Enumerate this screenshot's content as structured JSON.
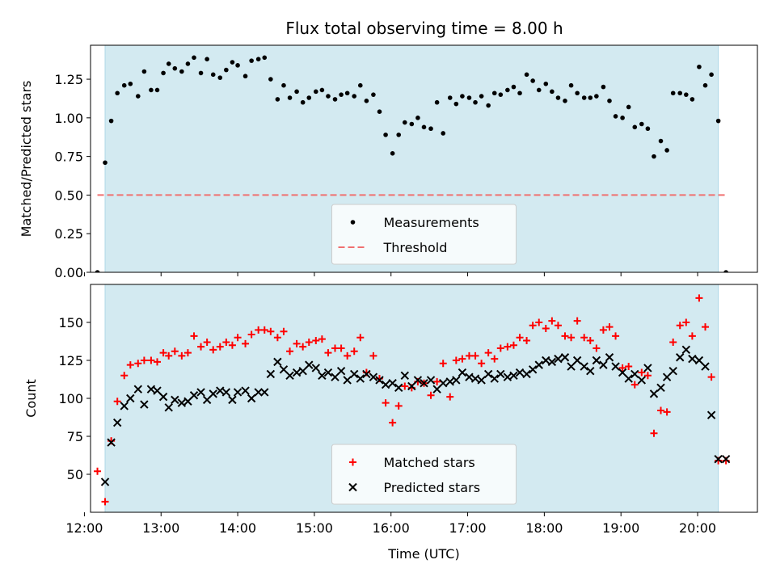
{
  "figure": {
    "title": "Flux total observing time = 8.00 h"
  },
  "colors": {
    "band": "#d3eaf1",
    "band_edge": "#add8e6",
    "threshold": "#f07070",
    "matched": "#ff0000",
    "predicted": "#000000",
    "measurements": "#000000"
  },
  "chart_data": [
    {
      "type": "scatter",
      "id": "ratio",
      "ylabel": "Matched/Predicted stars",
      "xlabel": "",
      "xlim": [
        12.08,
        20.78
      ],
      "ylim": [
        0,
        1.47
      ],
      "yticks": [
        "0.00",
        "0.25",
        "0.50",
        "0.75",
        "1.00",
        "1.25"
      ],
      "shaded_span": [
        12.27,
        20.27
      ],
      "legend": {
        "position": "lower-center",
        "entries": [
          "Measurements",
          "Threshold"
        ]
      },
      "threshold": {
        "name": "Threshold",
        "y": 0.5,
        "x": [
          12.17,
          20.37
        ]
      },
      "series": [
        {
          "name": "Measurements",
          "marker": "dot",
          "x": [
            12.17,
            12.27,
            12.35,
            12.43,
            12.52,
            12.6,
            12.7,
            12.78,
            12.87,
            12.95,
            13.03,
            13.1,
            13.18,
            13.27,
            13.35,
            13.43,
            13.52,
            13.6,
            13.68,
            13.77,
            13.85,
            13.93,
            14.0,
            14.1,
            14.18,
            14.27,
            14.35,
            14.43,
            14.52,
            14.6,
            14.68,
            14.77,
            14.85,
            14.93,
            15.02,
            15.1,
            15.18,
            15.27,
            15.35,
            15.43,
            15.52,
            15.6,
            15.68,
            15.77,
            15.85,
            15.93,
            16.02,
            16.1,
            16.18,
            16.27,
            16.35,
            16.43,
            16.52,
            16.6,
            16.68,
            16.77,
            16.85,
            16.93,
            17.02,
            17.1,
            17.18,
            17.27,
            17.35,
            17.43,
            17.52,
            17.6,
            17.68,
            17.77,
            17.85,
            17.93,
            18.02,
            18.1,
            18.18,
            18.27,
            18.35,
            18.43,
            18.52,
            18.6,
            18.68,
            18.77,
            18.85,
            18.93,
            19.02,
            19.1,
            19.18,
            19.27,
            19.35,
            19.43,
            19.52,
            19.6,
            19.68,
            19.77,
            19.85,
            19.93,
            20.02,
            20.1,
            20.18,
            20.27,
            20.37
          ],
          "y": [
            0.0,
            0.71,
            0.98,
            1.16,
            1.21,
            1.22,
            1.14,
            1.3,
            1.18,
            1.18,
            1.29,
            1.35,
            1.32,
            1.3,
            1.35,
            1.39,
            1.29,
            1.38,
            1.28,
            1.26,
            1.31,
            1.36,
            1.34,
            1.27,
            1.37,
            1.38,
            1.39,
            1.25,
            1.12,
            1.21,
            1.13,
            1.17,
            1.1,
            1.13,
            1.17,
            1.18,
            1.14,
            1.12,
            1.15,
            1.16,
            1.14,
            1.21,
            1.11,
            1.15,
            1.04,
            0.89,
            0.77,
            0.89,
            0.97,
            0.96,
            1.0,
            0.94,
            0.93,
            1.1,
            0.9,
            1.13,
            1.09,
            1.14,
            1.13,
            1.1,
            1.14,
            1.08,
            1.16,
            1.15,
            1.18,
            1.2,
            1.16,
            1.28,
            1.24,
            1.18,
            1.22,
            1.17,
            1.13,
            1.11,
            1.21,
            1.16,
            1.13,
            1.13,
            1.14,
            1.2,
            1.11,
            1.01,
            1.0,
            1.07,
            0.94,
            0.96,
            0.93,
            0.75,
            0.85,
            0.79,
            1.16,
            1.16,
            1.15,
            1.12,
            1.33,
            1.21,
            1.28,
            0.98,
            0.0
          ]
        }
      ]
    },
    {
      "type": "scatter",
      "id": "counts",
      "ylabel": "Count",
      "xlabel": "Time (UTC)",
      "xlim": [
        12.08,
        20.78
      ],
      "ylim": [
        25,
        175
      ],
      "yticks": [
        "50",
        "75",
        "100",
        "125",
        "150"
      ],
      "xticks": [
        "12:00",
        "13:00",
        "14:00",
        "15:00",
        "16:00",
        "17:00",
        "18:00",
        "19:00",
        "20:00"
      ],
      "shaded_span": [
        12.27,
        20.27
      ],
      "legend": {
        "position": "lower-center",
        "entries": [
          "Matched stars",
          "Predicted stars"
        ]
      },
      "series": [
        {
          "name": "Matched stars",
          "marker": "plus",
          "x": [
            12.17,
            12.27,
            12.35,
            12.43,
            12.52,
            12.6,
            12.7,
            12.78,
            12.87,
            12.95,
            13.03,
            13.1,
            13.18,
            13.27,
            13.35,
            13.43,
            13.52,
            13.6,
            13.68,
            13.77,
            13.85,
            13.93,
            14.0,
            14.1,
            14.18,
            14.27,
            14.35,
            14.43,
            14.52,
            14.6,
            14.68,
            14.77,
            14.85,
            14.93,
            15.02,
            15.1,
            15.18,
            15.27,
            15.35,
            15.43,
            15.52,
            15.6,
            15.68,
            15.77,
            15.85,
            15.93,
            16.02,
            16.1,
            16.18,
            16.27,
            16.35,
            16.43,
            16.52,
            16.6,
            16.68,
            16.77,
            16.85,
            16.93,
            17.02,
            17.1,
            17.18,
            17.27,
            17.35,
            17.43,
            17.52,
            17.6,
            17.68,
            17.77,
            17.85,
            17.93,
            18.02,
            18.1,
            18.18,
            18.27,
            18.35,
            18.43,
            18.52,
            18.6,
            18.68,
            18.77,
            18.85,
            18.93,
            19.02,
            19.1,
            19.18,
            19.27,
            19.35,
            19.43,
            19.52,
            19.6,
            19.68,
            19.77,
            19.85,
            19.93,
            20.02,
            20.1,
            20.18,
            20.27,
            20.37
          ],
          "y": [
            52,
            32,
            72,
            98,
            115,
            122,
            123,
            125,
            125,
            124,
            130,
            128,
            131,
            128,
            130,
            141,
            134,
            137,
            132,
            134,
            137,
            135,
            140,
            136,
            142,
            145,
            145,
            144,
            140,
            144,
            131,
            136,
            134,
            137,
            138,
            139,
            130,
            133,
            133,
            128,
            131,
            140,
            117,
            128,
            113,
            97,
            84,
            95,
            108,
            107,
            111,
            110,
            102,
            111,
            123,
            101,
            125,
            126,
            128,
            128,
            123,
            130,
            126,
            133,
            134,
            135,
            140,
            138,
            148,
            150,
            146,
            151,
            148,
            141,
            140,
            151,
            140,
            138,
            133,
            145,
            147,
            141,
            120,
            121,
            109,
            117,
            115,
            77,
            92,
            91,
            137,
            148,
            150,
            141,
            166,
            147,
            114,
            59,
            59
          ]
        },
        {
          "name": "Predicted stars",
          "marker": "x",
          "x": [
            12.27,
            12.35,
            12.43,
            12.52,
            12.6,
            12.7,
            12.78,
            12.87,
            12.95,
            13.03,
            13.1,
            13.18,
            13.27,
            13.35,
            13.43,
            13.52,
            13.6,
            13.68,
            13.77,
            13.85,
            13.93,
            14.0,
            14.1,
            14.18,
            14.27,
            14.35,
            14.43,
            14.52,
            14.6,
            14.68,
            14.77,
            14.85,
            14.93,
            15.02,
            15.1,
            15.18,
            15.27,
            15.35,
            15.43,
            15.52,
            15.6,
            15.68,
            15.77,
            15.85,
            15.93,
            16.02,
            16.1,
            16.18,
            16.27,
            16.35,
            16.43,
            16.52,
            16.6,
            16.68,
            16.77,
            16.85,
            16.93,
            17.02,
            17.1,
            17.18,
            17.27,
            17.35,
            17.43,
            17.52,
            17.6,
            17.68,
            17.77,
            17.85,
            17.93,
            18.02,
            18.1,
            18.18,
            18.27,
            18.35,
            18.43,
            18.52,
            18.6,
            18.68,
            18.77,
            18.85,
            18.93,
            19.02,
            19.1,
            19.18,
            19.27,
            19.35,
            19.43,
            19.52,
            19.6,
            19.68,
            19.77,
            19.85,
            19.93,
            20.02,
            20.1,
            20.18,
            20.27,
            20.37
          ],
          "y": [
            45,
            71,
            84,
            95,
            100,
            106,
            96,
            106,
            105,
            101,
            94,
            99,
            97,
            98,
            102,
            104,
            99,
            103,
            105,
            104,
            99,
            104,
            105,
            100,
            104,
            104,
            116,
            124,
            119,
            115,
            117,
            118,
            122,
            120,
            115,
            117,
            114,
            118,
            112,
            116,
            113,
            116,
            114,
            112,
            109,
            110,
            107,
            115,
            108,
            112,
            110,
            112,
            106,
            110,
            111,
            112,
            117,
            114,
            113,
            112,
            116,
            113,
            116,
            114,
            115,
            117,
            116,
            119,
            122,
            125,
            124,
            126,
            127,
            121,
            125,
            121,
            118,
            125,
            122,
            127,
            121,
            117,
            113,
            116,
            112,
            120,
            103,
            107,
            114,
            118,
            127,
            132,
            126,
            125,
            121,
            89,
            60,
            60
          ]
        }
      ]
    }
  ]
}
